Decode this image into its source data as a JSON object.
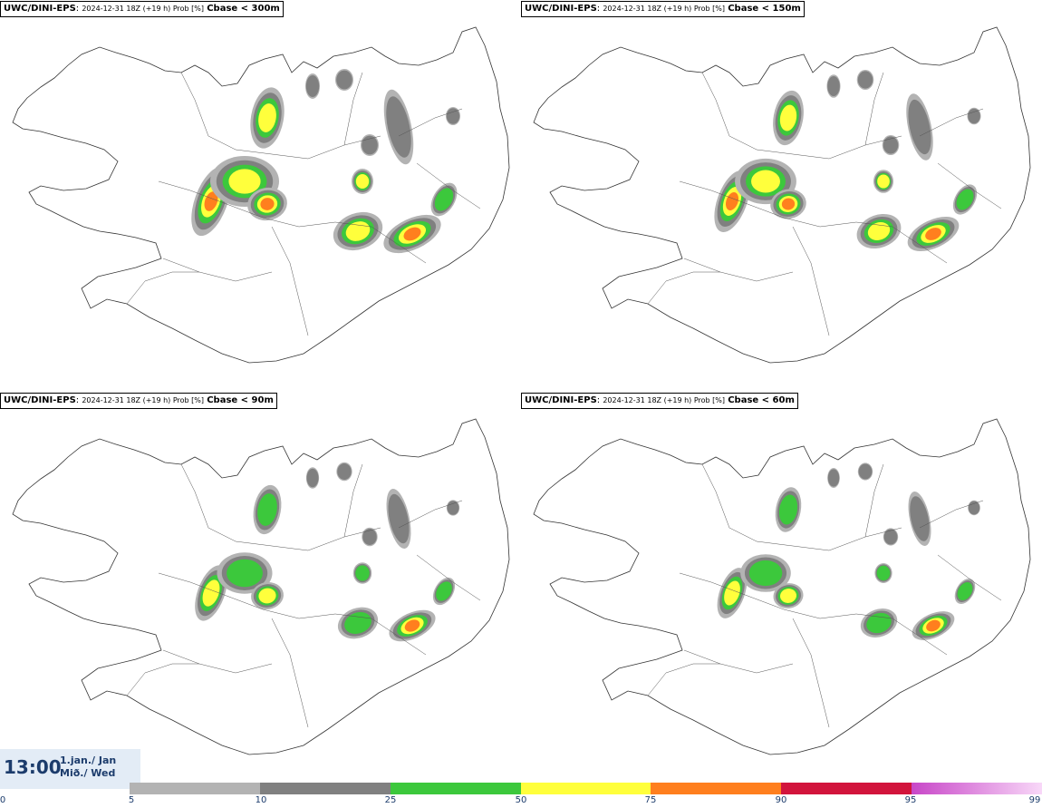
{
  "panels": [
    {
      "model": "UWC/DINI-EPS",
      "meta": "2024-12-31 18Z (+19 h) Prob [%]",
      "param": "Cbase < 300m"
    },
    {
      "model": "UWC/DINI-EPS",
      "meta": "2024-12-31 18Z (+19 h) Prob [%]",
      "param": "Cbase < 150m"
    },
    {
      "model": "UWC/DINI-EPS",
      "meta": "2024-12-31 18Z (+19 h) Prob [%]",
      "param": "Cbase < 90m"
    },
    {
      "model": "UWC/DINI-EPS",
      "meta": "2024-12-31 18Z (+19 h) Prob [%]",
      "param": "Cbase < 60m"
    }
  ],
  "time": {
    "hour": "13:00",
    "date": "1.jan./ Jan",
    "weekday": "Mið./ Wed"
  },
  "legend": {
    "ticks": [
      "0",
      "5",
      "10",
      "25",
      "50",
      "75",
      "90",
      "95",
      "99"
    ],
    "colors": [
      "#b3b3b3",
      "#808080",
      "#3cc83c",
      "#ffff3c",
      "#ff7f1e",
      "#d2143c",
      "#c846c8"
    ],
    "last_gradient": [
      "#c846c8",
      "#f8d8f8"
    ]
  }
}
